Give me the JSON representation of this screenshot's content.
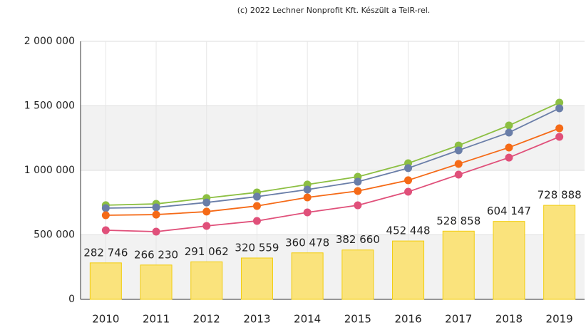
{
  "chart_data": {
    "type": "bar-line",
    "credit": "(c) 2022 Lechner Nonprofit Kft. Készült a TeIR-rel.",
    "categories": [
      "2010",
      "2011",
      "2012",
      "2013",
      "2014",
      "2015",
      "2016",
      "2017",
      "2018",
      "2019"
    ],
    "bars": {
      "color": "#fae37c",
      "border": "#f2cc0c",
      "values": [
        282746,
        266230,
        291062,
        320559,
        360478,
        382660,
        452448,
        528858,
        604147,
        728888
      ],
      "value_labels": [
        "282 746",
        "266 230",
        "291 062",
        "320 559",
        "360 478",
        "382 660",
        "452 448",
        "528 858",
        "604 147",
        "728 888"
      ]
    },
    "series": [
      {
        "color": "#8cbf42",
        "values": [
          730000,
          740000,
          785000,
          829000,
          890000,
          950000,
          1055000,
          1193000,
          1348000,
          1525000
        ]
      },
      {
        "color": "#6a7ea8",
        "values": [
          707000,
          713000,
          751000,
          796000,
          851000,
          912000,
          1017000,
          1155000,
          1293000,
          1481000
        ]
      },
      {
        "color": "#f56a17",
        "values": [
          652000,
          657000,
          680000,
          724000,
          790000,
          840000,
          923000,
          1050000,
          1177000,
          1326000
        ]
      },
      {
        "color": "#e0507a",
        "values": [
          536000,
          525000,
          569000,
          608000,
          674000,
          729000,
          834000,
          967000,
          1099000,
          1260000
        ]
      }
    ],
    "ylim": [
      0,
      2000000
    ],
    "yticks": [
      0,
      {
        "value": 500000,
        "label": "500 000"
      },
      {
        "value": 1000000,
        "label": "1 000 000"
      },
      {
        "value": 1500000,
        "label": "1 500 000"
      },
      {
        "value": 2000000,
        "label": "2 000 000"
      }
    ],
    "grid": true
  }
}
